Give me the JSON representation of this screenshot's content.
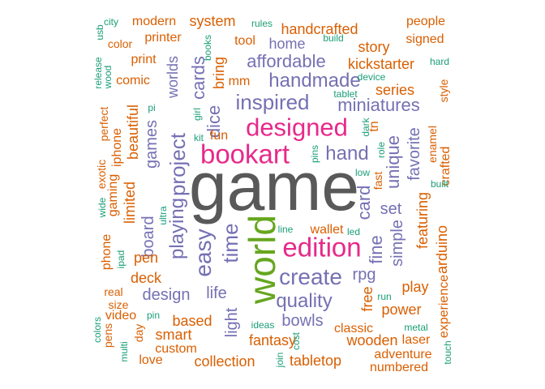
{
  "palette": {
    "green": "#1b9e77",
    "orange": "#d95f02",
    "purple": "#7570b3",
    "magenta": "#e7298a",
    "lime": "#66a61e",
    "gray": "#595959"
  },
  "words": [
    {
      "text": "game",
      "weight": 15,
      "color": "gray",
      "vertical": false
    },
    {
      "text": "world",
      "weight": 9,
      "color": "lime",
      "vertical": true
    },
    {
      "text": "bookart",
      "weight": 8,
      "color": "magenta",
      "vertical": false
    },
    {
      "text": "designed",
      "weight": 8,
      "color": "magenta",
      "vertical": false
    },
    {
      "text": "edition",
      "weight": 8,
      "color": "magenta",
      "vertical": false
    },
    {
      "text": "create",
      "weight": 6,
      "color": "purple",
      "vertical": false
    },
    {
      "text": "inspired",
      "weight": 6,
      "color": "purple",
      "vertical": false
    },
    {
      "text": "handmade",
      "weight": 6,
      "color": "purple",
      "vertical": false
    },
    {
      "text": "easy",
      "weight": 6,
      "color": "purple",
      "vertical": true
    },
    {
      "text": "time",
      "weight": 6,
      "color": "purple",
      "vertical": true
    },
    {
      "text": "project",
      "weight": 6,
      "color": "purple",
      "vertical": true
    },
    {
      "text": "playing",
      "weight": 6,
      "color": "purple",
      "vertical": true
    },
    {
      "text": "hand",
      "weight": 5,
      "color": "purple",
      "vertical": false
    },
    {
      "text": "quality",
      "weight": 5,
      "color": "purple",
      "vertical": false
    },
    {
      "text": "affordable",
      "weight": 5,
      "color": "purple",
      "vertical": false
    },
    {
      "text": "miniatures",
      "weight": 5,
      "color": "purple",
      "vertical": false
    },
    {
      "text": "fine",
      "weight": 5,
      "color": "purple",
      "vertical": true
    },
    {
      "text": "unique",
      "weight": 5,
      "color": "purple",
      "vertical": true
    },
    {
      "text": "card",
      "weight": 5,
      "color": "purple",
      "vertical": true
    },
    {
      "text": "cards",
      "weight": 5,
      "color": "purple",
      "vertical": true
    },
    {
      "text": "dice",
      "weight": 5,
      "color": "purple",
      "vertical": true
    },
    {
      "text": "games",
      "weight": 5,
      "color": "purple",
      "vertical": true
    },
    {
      "text": "set",
      "weight": 5,
      "color": "purple",
      "vertical": false
    },
    {
      "text": "rpg",
      "weight": 4,
      "color": "purple",
      "vertical": false
    },
    {
      "text": "life",
      "weight": 4,
      "color": "purple",
      "vertical": false
    },
    {
      "text": "design",
      "weight": 4,
      "color": "purple",
      "vertical": false
    },
    {
      "text": "bowls",
      "weight": 4,
      "color": "purple",
      "vertical": false
    },
    {
      "text": "home",
      "weight": 4,
      "color": "purple",
      "vertical": false
    },
    {
      "text": "simple",
      "weight": 4,
      "color": "purple",
      "vertical": true
    },
    {
      "text": "favorite",
      "weight": 4,
      "color": "purple",
      "vertical": true
    },
    {
      "text": "board",
      "weight": 4,
      "color": "purple",
      "vertical": true
    },
    {
      "text": "light",
      "weight": 4,
      "color": "purple",
      "vertical": true
    },
    {
      "text": "worlds",
      "weight": 4,
      "color": "purple",
      "vertical": true
    },
    {
      "text": "kickstarter",
      "weight": 3,
      "color": "orange",
      "vertical": false
    },
    {
      "text": "handcrafted",
      "weight": 3,
      "color": "orange",
      "vertical": false
    },
    {
      "text": "pen",
      "weight": 3,
      "color": "orange",
      "vertical": false
    },
    {
      "text": "deck",
      "weight": 3,
      "color": "orange",
      "vertical": false
    },
    {
      "text": "fantasy",
      "weight": 3,
      "color": "orange",
      "vertical": false
    },
    {
      "text": "tabletop",
      "weight": 3,
      "color": "orange",
      "vertical": false
    },
    {
      "text": "collection",
      "weight": 3,
      "color": "orange",
      "vertical": false
    },
    {
      "text": "smart",
      "weight": 3,
      "color": "orange",
      "vertical": false
    },
    {
      "text": "based",
      "weight": 3,
      "color": "orange",
      "vertical": false
    },
    {
      "text": "wooden",
      "weight": 3,
      "color": "orange",
      "vertical": false
    },
    {
      "text": "power",
      "weight": 3,
      "color": "orange",
      "vertical": false
    },
    {
      "text": "play",
      "weight": 3,
      "color": "orange",
      "vertical": false
    },
    {
      "text": "series",
      "weight": 3,
      "color": "orange",
      "vertical": false
    },
    {
      "text": "system",
      "weight": 3,
      "color": "orange",
      "vertical": false
    },
    {
      "text": "story",
      "weight": 3,
      "color": "orange",
      "vertical": false
    },
    {
      "text": "wallet",
      "weight": 3,
      "color": "orange",
      "vertical": false
    },
    {
      "text": "fun",
      "weight": 3,
      "color": "orange",
      "vertical": false
    },
    {
      "text": "featuring",
      "weight": 3,
      "color": "orange",
      "vertical": true
    },
    {
      "text": "arduino",
      "weight": 3,
      "color": "orange",
      "vertical": true
    },
    {
      "text": "limited",
      "weight": 3,
      "color": "orange",
      "vertical": true
    },
    {
      "text": "beautiful",
      "weight": 3,
      "color": "orange",
      "vertical": true
    },
    {
      "text": "gaming",
      "weight": 3,
      "color": "orange",
      "vertical": true
    },
    {
      "text": "iphone",
      "weight": 3,
      "color": "orange",
      "vertical": true
    },
    {
      "text": "phone",
      "weight": 3,
      "color": "orange",
      "vertical": true
    },
    {
      "text": "bring",
      "weight": 3,
      "color": "orange",
      "vertical": true
    },
    {
      "text": "tn",
      "weight": 3,
      "color": "orange",
      "vertical": true
    },
    {
      "text": "free",
      "weight": 3,
      "color": "orange",
      "vertical": true
    },
    {
      "text": "adventure",
      "weight": 2,
      "color": "orange",
      "vertical": false
    },
    {
      "text": "numbered",
      "weight": 2,
      "color": "orange",
      "vertical": false
    },
    {
      "text": "people",
      "weight": 2,
      "color": "orange",
      "vertical": false
    },
    {
      "text": "signed",
      "weight": 2,
      "color": "orange",
      "vertical": false
    },
    {
      "text": "modern",
      "weight": 2,
      "color": "orange",
      "vertical": false
    },
    {
      "text": "printer",
      "weight": 2,
      "color": "orange",
      "vertical": false
    },
    {
      "text": "print",
      "weight": 2,
      "color": "orange",
      "vertical": false
    },
    {
      "text": "comic",
      "weight": 2,
      "color": "orange",
      "vertical": false
    },
    {
      "text": "tool",
      "weight": 2,
      "color": "orange",
      "vertical": false
    },
    {
      "text": "mm",
      "weight": 2,
      "color": "orange",
      "vertical": false
    },
    {
      "text": "classic",
      "weight": 2,
      "color": "orange",
      "vertical": false
    },
    {
      "text": "laser",
      "weight": 2,
      "color": "orange",
      "vertical": false
    },
    {
      "text": "custom",
      "weight": 2,
      "color": "orange",
      "vertical": false
    },
    {
      "text": "love",
      "weight": 2,
      "color": "orange",
      "vertical": false
    },
    {
      "text": "video",
      "weight": 2,
      "color": "orange",
      "vertical": false
    },
    {
      "text": "size",
      "weight": 2,
      "color": "orange",
      "vertical": false
    },
    {
      "text": "real",
      "weight": 2,
      "color": "orange",
      "vertical": false
    },
    {
      "text": "color",
      "weight": 2,
      "color": "orange",
      "vertical": false
    },
    {
      "text": "experience",
      "weight": 2,
      "color": "orange",
      "vertical": true
    },
    {
      "text": "crafted",
      "weight": 2,
      "color": "orange",
      "vertical": true
    },
    {
      "text": "enamel",
      "weight": 2,
      "color": "orange",
      "vertical": true
    },
    {
      "text": "style",
      "weight": 2,
      "color": "orange",
      "vertical": true
    },
    {
      "text": "perfect",
      "weight": 2,
      "color": "orange",
      "vertical": true
    },
    {
      "text": "exotic",
      "weight": 2,
      "color": "orange",
      "vertical": true
    },
    {
      "text": "pens",
      "weight": 2,
      "color": "orange",
      "vertical": true
    },
    {
      "text": "day",
      "weight": 2,
      "color": "orange",
      "vertical": true
    },
    {
      "text": "fast",
      "weight": 2,
      "color": "orange",
      "vertical": true
    },
    {
      "text": "city",
      "weight": 1,
      "color": "green",
      "vertical": false
    },
    {
      "text": "rules",
      "weight": 1,
      "color": "green",
      "vertical": false
    },
    {
      "text": "build",
      "weight": 1,
      "color": "green",
      "vertical": false
    },
    {
      "text": "hard",
      "weight": 1,
      "color": "green",
      "vertical": false
    },
    {
      "text": "device",
      "weight": 1,
      "color": "green",
      "vertical": false
    },
    {
      "text": "tablet",
      "weight": 1,
      "color": "green",
      "vertical": false
    },
    {
      "text": "pi",
      "weight": 1,
      "color": "green",
      "vertical": false
    },
    {
      "text": "kit",
      "weight": 1,
      "color": "green",
      "vertical": false
    },
    {
      "text": "low",
      "weight": 1,
      "color": "green",
      "vertical": false
    },
    {
      "text": "built",
      "weight": 1,
      "color": "green",
      "vertical": false
    },
    {
      "text": "line",
      "weight": 1,
      "color": "green",
      "vertical": false
    },
    {
      "text": "led",
      "weight": 1,
      "color": "green",
      "vertical": false
    },
    {
      "text": "run",
      "weight": 1,
      "color": "green",
      "vertical": false
    },
    {
      "text": "pin",
      "weight": 1,
      "color": "green",
      "vertical": false
    },
    {
      "text": "ideas",
      "weight": 1,
      "color": "green",
      "vertical": false
    },
    {
      "text": "metal",
      "weight": 1,
      "color": "green",
      "vertical": false
    },
    {
      "text": "usb",
      "weight": 1,
      "color": "green",
      "vertical": true
    },
    {
      "text": "release",
      "weight": 1,
      "color": "green",
      "vertical": true
    },
    {
      "text": "wood",
      "weight": 1,
      "color": "green",
      "vertical": true
    },
    {
      "text": "books",
      "weight": 1,
      "color": "green",
      "vertical": true
    },
    {
      "text": "girl",
      "weight": 1,
      "color": "green",
      "vertical": true
    },
    {
      "text": "dark",
      "weight": 1,
      "color": "green",
      "vertical": true
    },
    {
      "text": "pins",
      "weight": 1,
      "color": "green",
      "vertical": true
    },
    {
      "text": "role",
      "weight": 1,
      "color": "green",
      "vertical": true
    },
    {
      "text": "wide",
      "weight": 1,
      "color": "green",
      "vertical": true
    },
    {
      "text": "ultra",
      "weight": 1,
      "color": "green",
      "vertical": true
    },
    {
      "text": "ipad",
      "weight": 1,
      "color": "green",
      "vertical": true
    },
    {
      "text": "colors",
      "weight": 1,
      "color": "green",
      "vertical": true
    },
    {
      "text": "multi",
      "weight": 1,
      "color": "green",
      "vertical": true
    },
    {
      "text": "join",
      "weight": 1,
      "color": "green",
      "vertical": true
    },
    {
      "text": "cost",
      "weight": 1,
      "color": "green",
      "vertical": true
    },
    {
      "text": "touch",
      "weight": 1,
      "color": "green",
      "vertical": true
    }
  ]
}
